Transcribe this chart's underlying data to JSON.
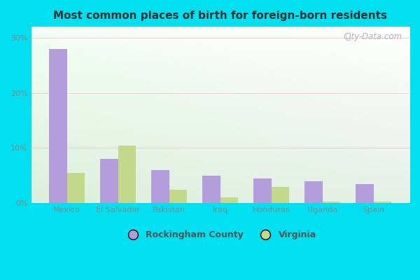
{
  "title": "Most common places of birth for foreign-born residents",
  "categories": [
    "Mexico",
    "El Salvador",
    "Pakistan",
    "Iraq",
    "Honduras",
    "Uganda",
    "Spain"
  ],
  "rockingham": [
    28.0,
    8.0,
    6.0,
    5.0,
    4.5,
    4.0,
    3.5
  ],
  "virginia": [
    5.5,
    10.5,
    2.5,
    1.0,
    3.0,
    0.3,
    0.3
  ],
  "rockingham_color": "#b39ddb",
  "virginia_color": "#c5d98d",
  "background_outer": "#00e0f0",
  "ylim": [
    0,
    32
  ],
  "yticks": [
    0,
    10,
    20,
    30
  ],
  "ytick_labels": [
    "0%",
    "10%",
    "20%",
    "30%"
  ],
  "legend_labels": [
    "Rockingham County",
    "Virginia"
  ],
  "watermark": "City-Data.com",
  "bar_width": 0.35,
  "title_fontsize": 11,
  "tick_fontsize": 8,
  "legend_fontsize": 9
}
